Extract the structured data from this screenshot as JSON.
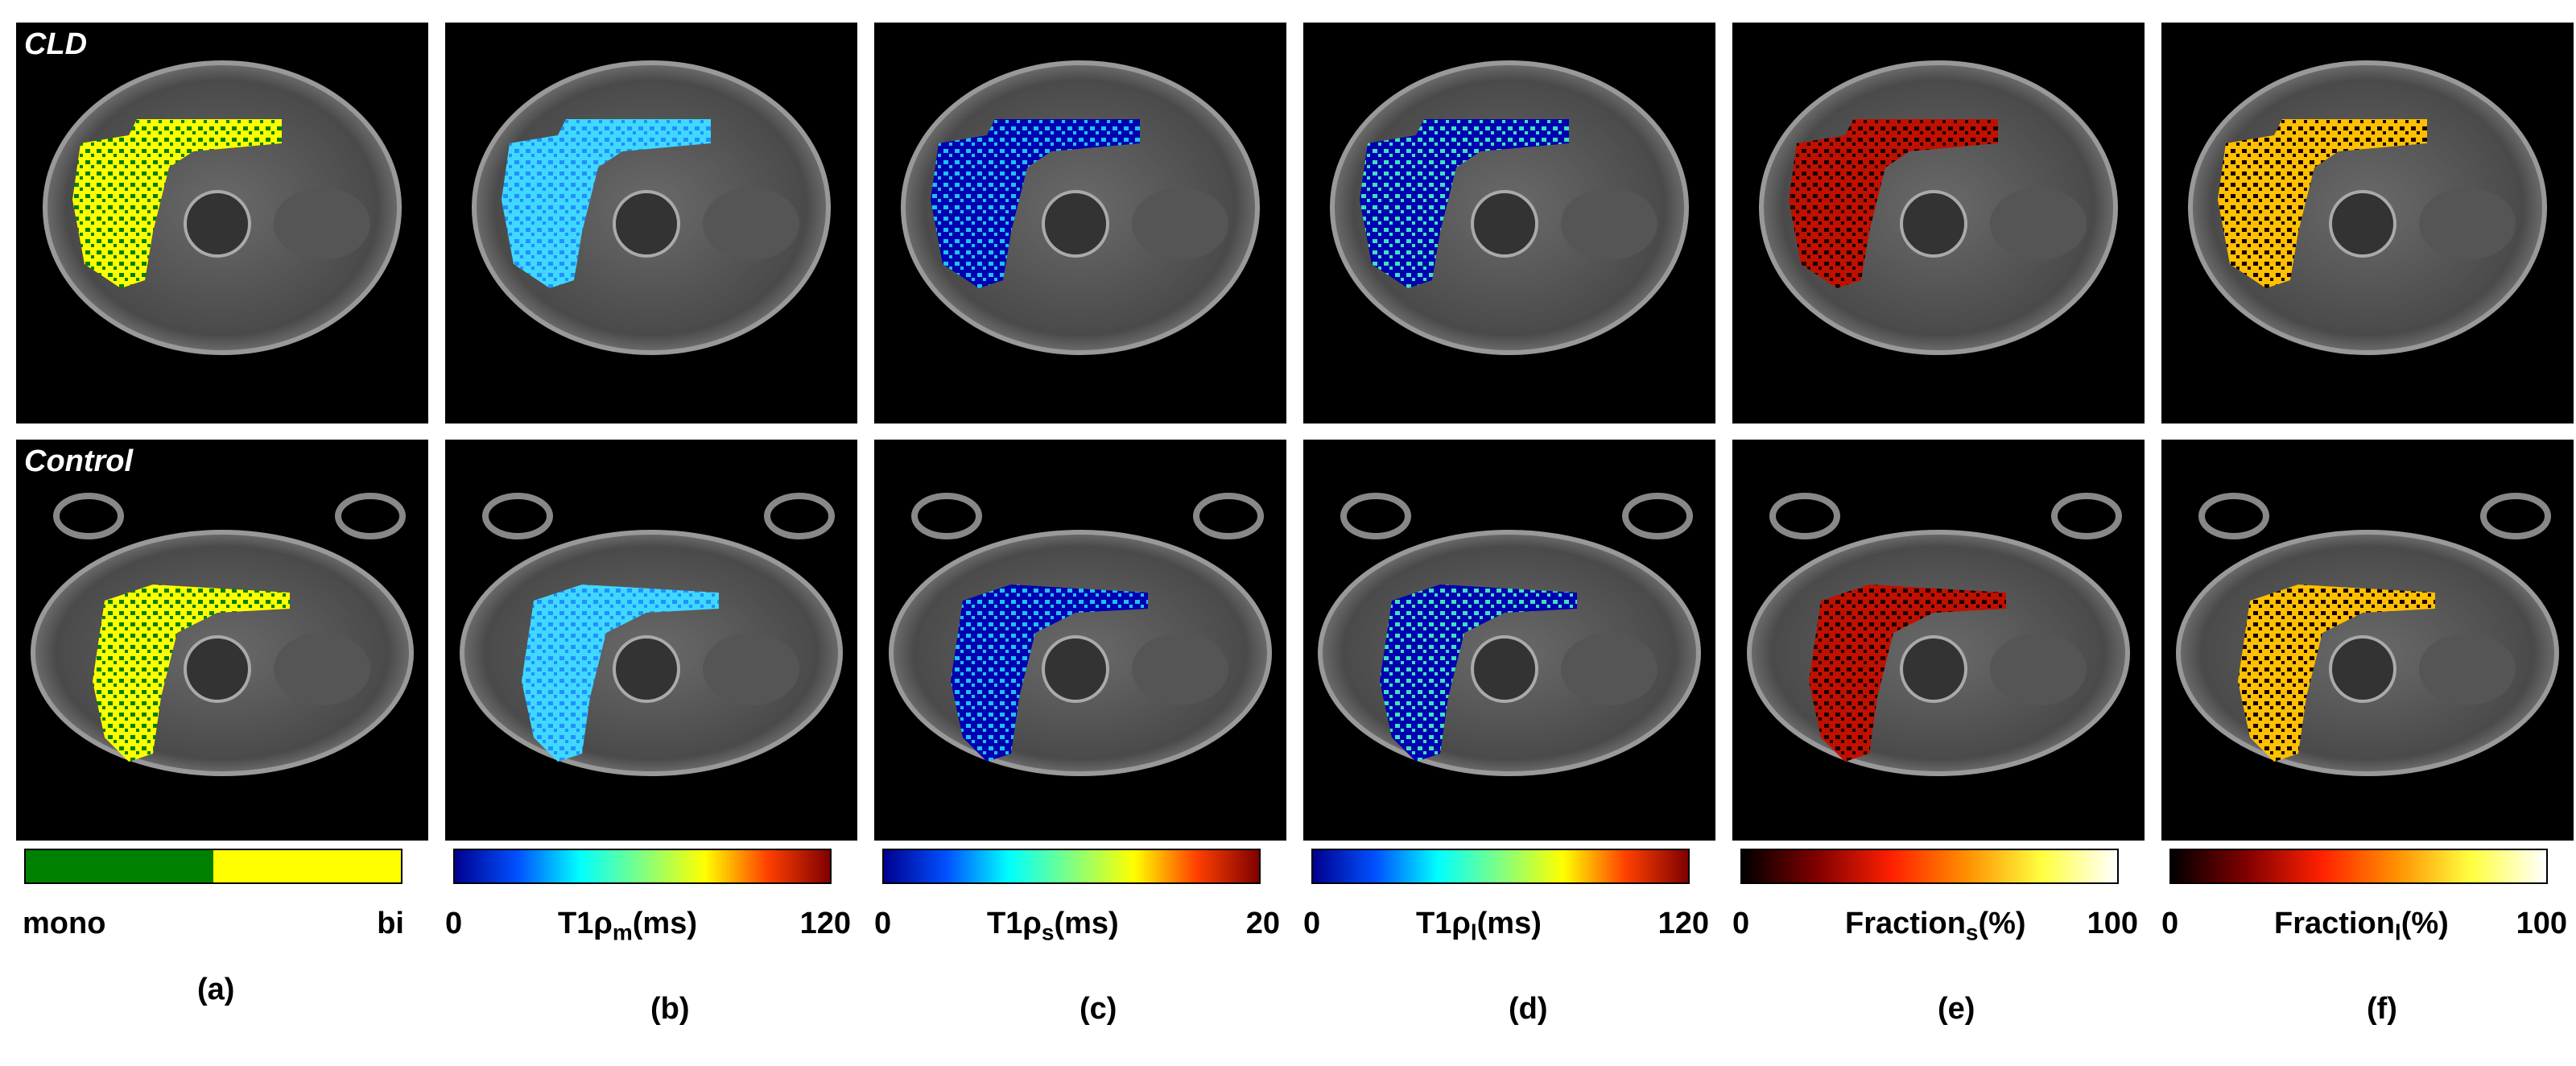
{
  "rows": [
    {
      "label": "CLD"
    },
    {
      "label": "Control"
    }
  ],
  "columns": [
    {
      "id": "a",
      "caption": "(a)",
      "min": "mono",
      "max": "bi",
      "label_main": "",
      "label_sub": "",
      "label_tail": "",
      "colormap": [
        "#008000",
        "#008000",
        "#ffff00",
        "#ffff00"
      ],
      "map_colors": [
        "#ffff00",
        "#008000"
      ]
    },
    {
      "id": "b",
      "caption": "(b)",
      "min": "0",
      "max": "120",
      "label_main": "T1ρ",
      "label_sub": "m",
      "label_tail": "(ms)",
      "colormap": [
        "#00008f",
        "#0050ff",
        "#00ffff",
        "#80ff80",
        "#ffff00",
        "#ff4000",
        "#800000"
      ],
      "map_colors": [
        "#40d8ff",
        "#2090ff"
      ]
    },
    {
      "id": "c",
      "caption": "(c)",
      "min": "0",
      "max": "20",
      "label_main": "T1ρ",
      "label_sub": "s",
      "label_tail": "(ms)",
      "colormap": [
        "#00008f",
        "#0050ff",
        "#00ffff",
        "#80ff80",
        "#ffff00",
        "#ff4000",
        "#800000"
      ],
      "map_colors": [
        "#0000b0",
        "#20c0ff"
      ]
    },
    {
      "id": "d",
      "caption": "(d)",
      "min": "0",
      "max": "120",
      "label_main": "T1ρ",
      "label_sub": "l",
      "label_tail": "(ms)",
      "colormap": [
        "#00008f",
        "#0050ff",
        "#00ffff",
        "#80ff80",
        "#ffff00",
        "#ff4000",
        "#800000"
      ],
      "map_colors": [
        "#0000b0",
        "#40e0c0"
      ]
    },
    {
      "id": "e",
      "caption": "(e)",
      "min": "0",
      "max": "100",
      "label_main": "Fraction",
      "label_sub": "s",
      "label_tail": "(%)",
      "colormap": [
        "#000000",
        "#800000",
        "#ff2000",
        "#ff9000",
        "#ffff40",
        "#ffffff"
      ],
      "map_colors": [
        "#c01000",
        "#1a0000"
      ]
    },
    {
      "id": "f",
      "caption": "(f)",
      "min": "0",
      "max": "100",
      "label_main": "Fraction",
      "label_sub": "l",
      "label_tail": "(%)",
      "colormap": [
        "#000000",
        "#800000",
        "#ff2000",
        "#ff9000",
        "#ffff40",
        "#ffffff"
      ],
      "map_colors": [
        "#ffc000",
        "#1a0000"
      ]
    }
  ]
}
